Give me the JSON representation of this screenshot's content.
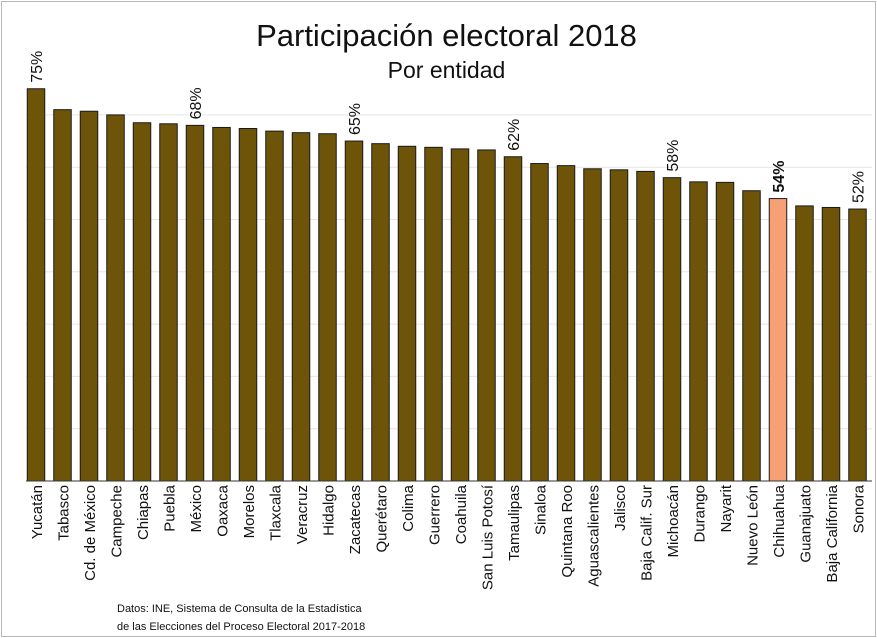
{
  "chart_data": {
    "type": "bar",
    "title": "Participación electoral 2018",
    "subtitle": "Por entidad",
    "categories": [
      "Yucatán",
      "Tabasco",
      "Cd. de México",
      "Campeche",
      "Chiapas",
      "Puebla",
      "México",
      "Oaxaca",
      "Morelos",
      "Tlaxcala",
      "Veracruz",
      "Hidalgo",
      "Zacatecas",
      "Querétaro",
      "Colima",
      "Guerrero",
      "Coahuila",
      "San Luis Potosí",
      "Tamaulipas",
      "Sinaloa",
      "Quintana Roo",
      "Aguascalientes",
      "Jalisco",
      "Baja Calif. Sur",
      "Michoacán",
      "Durango",
      "Nayarit",
      "Nuevo León",
      "Chihuahua",
      "Guanajuato",
      "Baja California",
      "Sonora"
    ],
    "values": [
      75,
      71,
      70.7,
      70,
      68.5,
      68.3,
      68,
      67.6,
      67.4,
      66.9,
      66.6,
      66.4,
      65,
      64.5,
      64,
      63.8,
      63.5,
      63.3,
      62,
      60.7,
      60.3,
      59.7,
      59.5,
      59.2,
      58,
      57.2,
      57.1,
      55.5,
      54,
      52.6,
      52.3,
      52
    ],
    "data_labels": {
      "0": "75%",
      "6": "68%",
      "12": "65%",
      "18": "62%",
      "24": "58%",
      "28": "54%",
      "31": "52%"
    },
    "highlight": {
      "index": 28,
      "color": "#f7a076"
    },
    "bar_color": "#6e5408",
    "ylim": [
      0,
      78
    ],
    "grid": true,
    "grid_color": "#e6e6e6",
    "xlabel": "",
    "ylabel": ""
  },
  "source_lines": [
    "Datos: INE, Sistema de Consulta de la Estadística",
    "de las Elecciones del Proceso Electoral 2017-2018"
  ]
}
